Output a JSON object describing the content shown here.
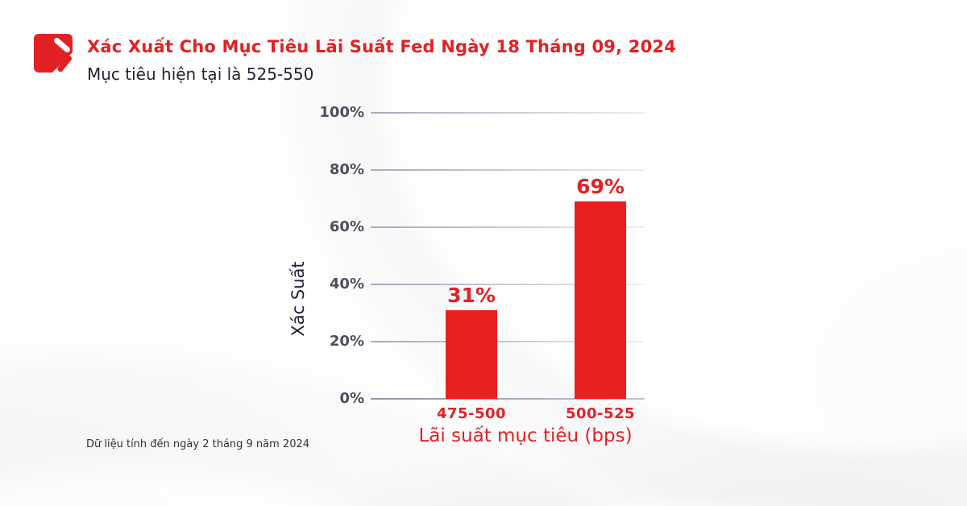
{
  "header": {
    "title": "Xác Xuất Cho Mục Tiêu Lãi Suất Fed Ngày 18 Tháng 09, 2024",
    "subtitle": "Mục tiêu hiện tại là 525-550"
  },
  "icons": {
    "logo": "red-rounded-square-with-diagonal-slashes"
  },
  "footer": {
    "note": "Dữ liệu tính đến ngày 2 tháng 9 năm 2024"
  },
  "colors": {
    "red": "#e32124",
    "bar-red": "#e8211f",
    "text-dark": "#222433",
    "tick-text": "#4e4e5c",
    "gridline": "#a9a9bd",
    "axis-line": "#9494a8",
    "background": "#ffffff"
  },
  "chart_data": {
    "type": "bar",
    "title": "Xác Xuất Cho Mục Tiêu Lãi Suất Fed Ngày 18 Tháng 09, 2024",
    "subtitle": "Mục tiêu hiện tại là 525-550",
    "categories": [
      "475-500",
      "500-525"
    ],
    "values": [
      31,
      69
    ],
    "value_labels": [
      "31%",
      "69%"
    ],
    "xlabel": "Lãi suất mục tiêu (bps)",
    "ylabel": "Xác Suất",
    "ylim": [
      0,
      100
    ],
    "ytick_step": 20,
    "ytick_labels": [
      "0%",
      "20%",
      "40%",
      "60%",
      "80%",
      "100%"
    ],
    "grid": true,
    "legend": false,
    "note": "Dữ liệu tính đến ngày 2 tháng 9 năm 2024"
  }
}
